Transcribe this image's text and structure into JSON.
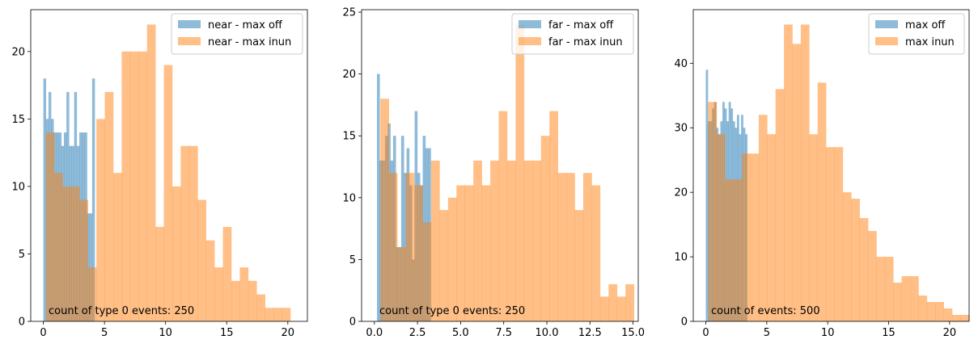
{
  "colors": {
    "series1": "#1f77b4",
    "series2": "#ff7f0e",
    "alpha": 0.5
  },
  "chart_data": [
    {
      "type": "bar",
      "subtype": "overlapping histogram",
      "xlim": [
        -1.03,
        21.6
      ],
      "ylim": [
        0,
        23.1
      ],
      "xticks": [
        0,
        5,
        10,
        15,
        20
      ],
      "xtick_labels": [
        "0",
        "5",
        "10",
        "15",
        "20"
      ],
      "yticks": [
        0,
        5,
        10,
        15,
        20
      ],
      "ytick_labels": [
        "0",
        "5",
        "10",
        "15",
        "20"
      ],
      "legend_position": "top-right",
      "annotation": "count of type 0 events: 250",
      "series": [
        {
          "name": "near - max off",
          "bin_start": 0.0,
          "bin_width": 0.21,
          "counts": [
            18,
            15,
            17,
            15,
            14,
            14,
            14,
            13,
            14,
            17,
            13,
            13,
            17,
            13,
            14,
            14,
            14,
            8,
            8,
            18
          ]
        },
        {
          "name": "near - max inun",
          "bin_start": 0.2,
          "bin_width": 0.69,
          "counts": [
            14,
            11,
            10,
            10,
            9,
            4,
            15,
            17,
            11,
            20,
            20,
            20,
            22,
            7,
            19,
            10,
            13,
            13,
            9,
            6,
            4,
            7,
            3,
            4,
            3,
            2,
            1,
            1,
            1
          ]
        }
      ]
    },
    {
      "type": "bar",
      "subtype": "overlapping histogram",
      "xlim": [
        -0.74,
        15.3
      ],
      "ylim": [
        0,
        25.2
      ],
      "xticks": [
        0.0,
        2.5,
        5.0,
        7.5,
        10.0,
        12.5,
        15.0
      ],
      "xtick_labels": [
        "0.0",
        "2.5",
        "5.0",
        "7.5",
        "10.0",
        "12.5",
        "15.0"
      ],
      "yticks": [
        0,
        5,
        10,
        15,
        20,
        25
      ],
      "ytick_labels": [
        "0",
        "5",
        "10",
        "15",
        "20",
        "25"
      ],
      "legend_position": "top-right",
      "annotation": "count of type 0 events: 250",
      "series": [
        {
          "name": "far - max off",
          "bin_start": 0.15,
          "bin_width": 0.156,
          "counts": [
            20,
            13,
            13,
            15,
            16,
            13,
            15,
            6,
            6,
            15,
            12,
            14,
            11,
            5,
            17,
            12,
            11,
            15,
            14,
            14
          ]
        },
        {
          "name": "far - max inun",
          "bin_start": 0.35,
          "bin_width": 0.49,
          "counts": [
            18,
            12,
            6,
            12,
            11,
            8,
            13,
            9,
            10,
            11,
            11,
            13,
            11,
            13,
            17,
            13,
            24,
            13,
            13,
            15,
            17,
            12,
            12,
            9,
            12,
            11,
            2,
            3,
            2,
            3,
            0,
            0,
            0,
            3
          ]
        }
      ]
    },
    {
      "type": "bar",
      "subtype": "overlapping histogram",
      "xlim": [
        -1.03,
        21.6
      ],
      "ylim": [
        0,
        48.3
      ],
      "xticks": [
        0,
        5,
        10,
        15,
        20
      ],
      "xtick_labels": [
        "0",
        "5",
        "10",
        "15",
        "20"
      ],
      "yticks": [
        0,
        10,
        20,
        30,
        40
      ],
      "ytick_labels": [
        "0",
        "10",
        "20",
        "30",
        "40"
      ],
      "legend_position": "top-right",
      "annotation": "count of events: 500",
      "series": [
        {
          "name": "max off",
          "bin_start": 0.0,
          "bin_width": 0.17,
          "counts": [
            39,
            31,
            31,
            33,
            34,
            30,
            29,
            31,
            34,
            33,
            31,
            34,
            33,
            31,
            30,
            32,
            29,
            32,
            30,
            29
          ]
        },
        {
          "name": "max inun",
          "bin_start": 0.2,
          "bin_width": 0.69,
          "counts": [
            34,
            29,
            22,
            22,
            26,
            26,
            32,
            29,
            36,
            46,
            43,
            46,
            29,
            37,
            27,
            27,
            20,
            19,
            16,
            14,
            10,
            10,
            6,
            7,
            7,
            4,
            3,
            3,
            2,
            1,
            1
          ]
        }
      ]
    }
  ]
}
